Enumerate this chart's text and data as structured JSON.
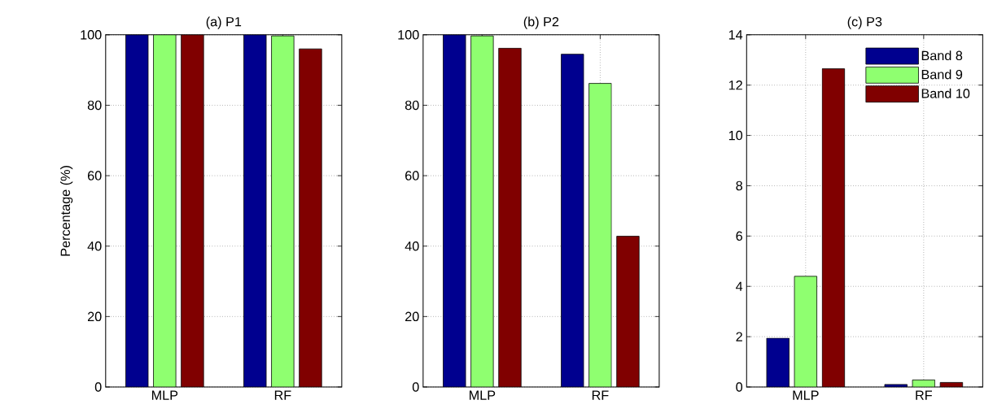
{
  "chart_data": [
    {
      "type": "bar",
      "title": "(a) P1",
      "ylabel": "Percentage (%)",
      "categories": [
        "MLP",
        "RF"
      ],
      "series": [
        {
          "color": "#00008f",
          "values": [
            100,
            100
          ]
        },
        {
          "color": "#8fff70",
          "values": [
            100,
            99.7
          ]
        },
        {
          "color": "#800000",
          "values": [
            100,
            96
          ]
        }
      ],
      "ylim": [
        0,
        100
      ],
      "yticks": [
        0,
        20,
        40,
        60,
        80,
        100
      ],
      "grid": true
    },
    {
      "type": "bar",
      "title": "(b) P2",
      "categories": [
        "MLP",
        "RF"
      ],
      "series": [
        {
          "color": "#00008f",
          "values": [
            100,
            94.5
          ]
        },
        {
          "color": "#8fff70",
          "values": [
            99.7,
            86.2
          ]
        },
        {
          "color": "#800000",
          "values": [
            96.2,
            42.8
          ]
        }
      ],
      "ylim": [
        0,
        100
      ],
      "yticks": [
        0,
        20,
        40,
        60,
        80,
        100
      ],
      "grid": true
    },
    {
      "type": "bar",
      "title": "(c) P3",
      "categories": [
        "MLP",
        "RF"
      ],
      "series": [
        {
          "name": "Band 8",
          "color": "#00008f",
          "values": [
            1.94,
            0.1
          ]
        },
        {
          "name": "Band 9",
          "color": "#8fff70",
          "values": [
            4.4,
            0.28
          ]
        },
        {
          "name": "Band 10",
          "color": "#800000",
          "values": [
            12.65,
            0.18
          ]
        }
      ],
      "ylim": [
        0,
        14
      ],
      "yticks": [
        0,
        2,
        4,
        6,
        8,
        10,
        12,
        14
      ],
      "grid": true,
      "legend": "top right"
    }
  ]
}
